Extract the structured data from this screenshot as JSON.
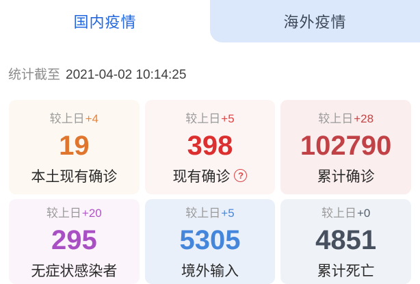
{
  "tabs": [
    {
      "label": "国内疫情",
      "active": true
    },
    {
      "label": "海外疫情",
      "active": false
    }
  ],
  "timestamp": {
    "prefix": "统计截至",
    "datetime": "2021-04-02 10:14:25"
  },
  "stats": [
    {
      "delta_label": "较上日",
      "delta": "+4",
      "value": "19",
      "label": "本土现有确诊",
      "color": "#e0762e",
      "delta_color": "#e8833a",
      "bg": "#fdf9f2"
    },
    {
      "delta_label": "较上日",
      "delta": "+5",
      "value": "398",
      "label": "现有确诊",
      "color": "#dc3030",
      "delta_color": "#e04343",
      "bg": "#fdf5f4",
      "help_icon": "?"
    },
    {
      "delta_label": "较上日",
      "delta": "+28",
      "value": "102790",
      "label": "累计确诊",
      "color": "#c04146",
      "delta_color": "#c24545",
      "bg": "#faeeee"
    },
    {
      "delta_label": "较上日",
      "delta": "+20",
      "value": "295",
      "label": "无症状感染者",
      "color": "#a94fc4",
      "delta_color": "#b055c8",
      "bg": "#fcf4fb"
    },
    {
      "delta_label": "较上日",
      "delta": "+5",
      "value": "5305",
      "label": "境外输入",
      "color": "#4486db",
      "delta_color": "#4a86d8",
      "bg": "#e9f0fa"
    },
    {
      "delta_label": "较上日",
      "delta": "+0",
      "value": "4851",
      "label": "累计死亡",
      "color": "#47505e",
      "delta_color": "#55606e",
      "bg": "#eff2f6"
    }
  ],
  "colors": {
    "active_tab_text": "#2166dd",
    "inactive_tab_bg": "#dbe8fc",
    "inactive_tab_text": "#3c4858",
    "help_icon_red": "#dd4444",
    "page_bg": "#ffffff"
  }
}
